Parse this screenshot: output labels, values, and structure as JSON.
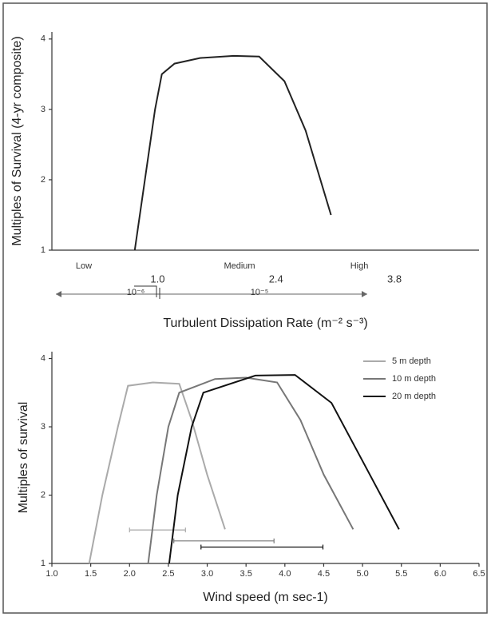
{
  "chart_data": [
    {
      "type": "line",
      "y_label": "Multiples of Survival (4-yr composite)",
      "x_label": "Turbulent Dissipation Rate (m⁻² s⁻³)",
      "xlim": [
        -0.25,
        4.8
      ],
      "ylim": [
        1,
        4.1
      ],
      "yticks": [
        1,
        2,
        3,
        4
      ],
      "xticks": [
        {
          "value": 1,
          "label": "1.0"
        },
        2.4,
        3.8
      ],
      "annotations": [
        "Low",
        "Medium",
        "High",
        "10⁻⁶",
        "10⁻⁵"
      ],
      "series": [
        {
          "color": "#222222",
          "x": [
            0.73,
            0.85,
            0.97,
            1.05,
            1.2,
            1.5,
            1.9,
            2.2,
            2.5,
            2.75,
            3.05
          ],
          "values": [
            1,
            2,
            3,
            3.5,
            3.65,
            3.73,
            3.76,
            3.75,
            3.4,
            2.7,
            1.5
          ]
        }
      ]
    },
    {
      "type": "line",
      "y_label": "Multiples of survival",
      "x_label": "Wind speed (m sec-1)",
      "xlim": [
        1,
        6.5
      ],
      "ylim": [
        1,
        4.1
      ],
      "yticks": [
        1,
        2,
        3,
        4
      ],
      "xticks": [
        {
          "value": 1,
          "label": "1.0"
        },
        1.5,
        {
          "value": 2,
          "label": "2.0"
        },
        2.5,
        {
          "value": 3,
          "label": "3.0"
        },
        3.5,
        {
          "value": 4,
          "label": "4.0"
        },
        4.5,
        {
          "value": 5,
          "label": "5.0"
        },
        5.5,
        {
          "value": 6,
          "label": "6.0"
        },
        6.5
      ],
      "legend": "upper right",
      "series": [
        {
          "name": "5 m depth",
          "color": "#aaaaaa",
          "x": [
            1.48,
            1.65,
            1.85,
            1.98,
            2.3,
            2.64,
            2.8,
            3.0,
            3.23
          ],
          "values": [
            1,
            2,
            3,
            3.6,
            3.65,
            3.63,
            3.1,
            2.3,
            1.5
          ],
          "error_bar": {
            "x_low": 2.0,
            "x_high": 2.72,
            "y": 1.49
          }
        },
        {
          "name": "10 m depth",
          "color": "#777777",
          "x": [
            2.24,
            2.35,
            2.5,
            2.64,
            3.1,
            3.5,
            3.9,
            4.2,
            4.5,
            4.88
          ],
          "values": [
            1,
            2,
            3,
            3.5,
            3.7,
            3.72,
            3.65,
            3.1,
            2.3,
            1.5
          ],
          "error_bar": {
            "x_low": 2.57,
            "x_high": 3.86,
            "y": 1.33
          }
        },
        {
          "name": "20 m depth",
          "color": "#111111",
          "x": [
            2.51,
            2.62,
            2.8,
            2.95,
            3.62,
            4.13,
            4.6,
            5.0,
            5.47
          ],
          "values": [
            1,
            2,
            3,
            3.5,
            3.75,
            3.76,
            3.35,
            2.5,
            1.5
          ],
          "error_bar": {
            "x_low": 2.92,
            "x_high": 4.49,
            "y": 1.24
          }
        }
      ]
    }
  ]
}
